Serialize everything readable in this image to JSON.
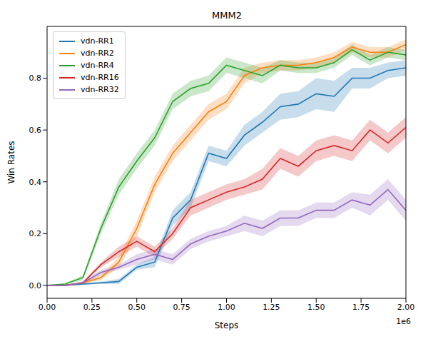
{
  "chart_data": {
    "type": "line",
    "title": "MMM2",
    "x_label": "Steps",
    "y_label": "Win Rates",
    "annotations": [
      "1e6"
    ],
    "x": [
      0,
      0.1,
      0.2,
      0.3,
      0.4,
      0.5,
      0.6,
      0.7,
      0.8,
      0.9,
      1.0,
      1.1,
      1.2,
      1.3,
      1.4,
      1.5,
      1.6,
      1.7,
      1.8,
      1.9,
      2.0
    ],
    "xlim": [
      0,
      2
    ],
    "xticks": [
      {
        "value": 0,
        "label": "0.00"
      },
      {
        "value": 0.25,
        "label": "0.25"
      },
      {
        "value": 0.5,
        "label": "0.50"
      },
      {
        "value": 0.75,
        "label": "0.75"
      },
      {
        "value": 1,
        "label": "1.00"
      },
      {
        "value": 1.25,
        "label": "1.25"
      },
      {
        "value": 1.5,
        "label": "1.50"
      },
      {
        "value": 1.75,
        "label": "1.75"
      },
      {
        "value": 2,
        "label": "2.00"
      }
    ],
    "ylim": [
      -0.05,
      1.0
    ],
    "yticks": [
      {
        "value": 0,
        "label": "0.0"
      },
      {
        "value": 0.2,
        "label": "0.2"
      },
      {
        "value": 0.4,
        "label": "0.4"
      },
      {
        "value": 0.6,
        "label": "0.6"
      },
      {
        "value": 0.8,
        "label": "0.8"
      }
    ],
    "grid": false,
    "legend": "upper left",
    "series": [
      {
        "name": "vdn-RR1",
        "color": "#1f77b4",
        "values": [
          0,
          0,
          0.005,
          0.01,
          0.015,
          0.07,
          0.09,
          0.26,
          0.33,
          0.51,
          0.49,
          0.58,
          0.63,
          0.69,
          0.7,
          0.74,
          0.73,
          0.8,
          0.8,
          0.83,
          0.84
        ],
        "std": [
          0,
          0,
          0.003,
          0.005,
          0.01,
          0.01,
          0.02,
          0.03,
          0.03,
          0.03,
          0.03,
          0.04,
          0.04,
          0.05,
          0.05,
          0.06,
          0.06,
          0.04,
          0.04,
          0.03,
          0.03
        ]
      },
      {
        "name": "vdn-RR2",
        "color": "#ff7f0e",
        "values": [
          0,
          0,
          0.01,
          0.03,
          0.09,
          0.22,
          0.39,
          0.51,
          0.59,
          0.67,
          0.71,
          0.81,
          0.84,
          0.85,
          0.85,
          0.86,
          0.88,
          0.92,
          0.9,
          0.9,
          0.93
        ],
        "std": [
          0,
          0,
          0.005,
          0.01,
          0.02,
          0.03,
          0.03,
          0.03,
          0.03,
          0.03,
          0.03,
          0.03,
          0.02,
          0.02,
          0.02,
          0.02,
          0.02,
          0.02,
          0.02,
          0.02,
          0.02
        ]
      },
      {
        "name": "vdn-RR4",
        "color": "#2ca02c",
        "values": [
          0,
          0.005,
          0.03,
          0.22,
          0.38,
          0.48,
          0.57,
          0.71,
          0.76,
          0.78,
          0.85,
          0.83,
          0.81,
          0.85,
          0.84,
          0.84,
          0.86,
          0.91,
          0.87,
          0.9,
          0.89
        ],
        "std": [
          0,
          0.003,
          0.01,
          0.02,
          0.03,
          0.03,
          0.03,
          0.03,
          0.03,
          0.03,
          0.03,
          0.03,
          0.03,
          0.02,
          0.02,
          0.02,
          0.02,
          0.02,
          0.02,
          0.02,
          0.02
        ]
      },
      {
        "name": "vdn-RR16",
        "color": "#d62728",
        "values": [
          0,
          0,
          0.01,
          0.08,
          0.13,
          0.17,
          0.13,
          0.2,
          0.3,
          0.33,
          0.36,
          0.38,
          0.41,
          0.49,
          0.46,
          0.52,
          0.54,
          0.52,
          0.6,
          0.55,
          0.61
        ],
        "std": [
          0,
          0,
          0.005,
          0.01,
          0.02,
          0.02,
          0.02,
          0.02,
          0.03,
          0.03,
          0.03,
          0.03,
          0.04,
          0.04,
          0.04,
          0.04,
          0.04,
          0.04,
          0.04,
          0.04,
          0.04
        ]
      },
      {
        "name": "vdn-RR32",
        "color": "#9467bd",
        "values": [
          0,
          0,
          0.01,
          0.05,
          0.07,
          0.1,
          0.12,
          0.1,
          0.16,
          0.19,
          0.21,
          0.24,
          0.22,
          0.26,
          0.26,
          0.29,
          0.29,
          0.33,
          0.31,
          0.37,
          0.29
        ],
        "std": [
          0,
          0,
          0.005,
          0.01,
          0.01,
          0.02,
          0.02,
          0.02,
          0.02,
          0.02,
          0.02,
          0.03,
          0.03,
          0.03,
          0.03,
          0.03,
          0.03,
          0.03,
          0.04,
          0.04,
          0.04
        ]
      }
    ]
  }
}
